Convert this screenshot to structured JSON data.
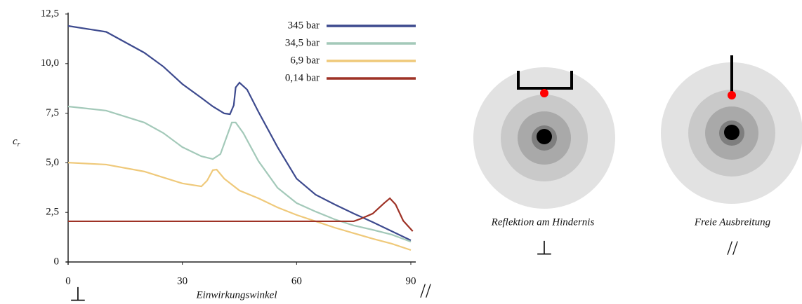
{
  "chart_data": {
    "type": "line",
    "xlabel": "Einwirkungswinkel",
    "ylabel": "c",
    "ylabel_sub": "r",
    "x_start_symbol": "⊥",
    "x_end_symbol": "//",
    "xlim": [
      0,
      90
    ],
    "ylim": [
      0,
      12.5
    ],
    "xticks": [
      0,
      30,
      60,
      90
    ],
    "yticks": [
      0,
      {
        "value": 2.5,
        "label": "2,5"
      },
      {
        "value": 5,
        "label": "5,0"
      },
      {
        "value": 7.5,
        "label": "7,5"
      },
      {
        "value": 10,
        "label": "10,0"
      },
      {
        "value": 12.5,
        "label": "12,5"
      }
    ],
    "legend": "top-right",
    "series": [
      {
        "name": "345 bar",
        "color": "#3d4a8e",
        "x": [
          0,
          10,
          20,
          25,
          30,
          35,
          38,
          41,
          42.5,
          43.5,
          44,
          45,
          47,
          50,
          55,
          60,
          65,
          70,
          75,
          80,
          85,
          90
        ],
        "values": [
          11.9,
          11.6,
          10.55,
          9.85,
          8.97,
          8.27,
          7.84,
          7.49,
          7.45,
          7.9,
          8.8,
          9.04,
          8.69,
          7.56,
          5.79,
          4.2,
          3.39,
          2.9,
          2.44,
          2.01,
          1.55,
          1.09
        ]
      },
      {
        "name": "34,5 bar",
        "color": "#a3c9b9",
        "x": [
          0,
          10,
          20,
          25,
          30,
          35,
          38,
          40,
          42,
          43,
          44,
          46,
          50,
          55,
          60,
          65,
          70,
          75,
          80,
          85,
          90
        ],
        "values": [
          7.84,
          7.63,
          7.03,
          6.5,
          5.79,
          5.33,
          5.19,
          5.44,
          6.5,
          7.03,
          7.03,
          6.5,
          5.08,
          3.74,
          2.97,
          2.54,
          2.15,
          1.84,
          1.62,
          1.38,
          1.02
        ]
      },
      {
        "name": "6,9 bar",
        "color": "#efc97a",
        "x": [
          0,
          10,
          20,
          30,
          35,
          36.5,
          38,
          39,
          41,
          45,
          50,
          55,
          60,
          65,
          70,
          75,
          80,
          85,
          90
        ],
        "values": [
          5.01,
          4.91,
          4.56,
          3.96,
          3.81,
          4.1,
          4.63,
          4.66,
          4.2,
          3.6,
          3.21,
          2.75,
          2.37,
          2.05,
          1.73,
          1.45,
          1.17,
          0.92,
          0.6
        ]
      },
      {
        "name": "0,14 bar",
        "color": "#9e3226",
        "x": [
          0,
          75,
          77,
          80,
          83,
          84.5,
          86,
          88,
          90.5
        ],
        "values": [
          2.05,
          2.05,
          2.19,
          2.44,
          2.97,
          3.21,
          2.9,
          2.08,
          1.55
        ]
      }
    ]
  },
  "diagrams": [
    {
      "caption": "Reflektion am Hindernis",
      "symbol": "⊥"
    },
    {
      "caption": "Freie Ausbreitung",
      "symbol": "//"
    }
  ]
}
